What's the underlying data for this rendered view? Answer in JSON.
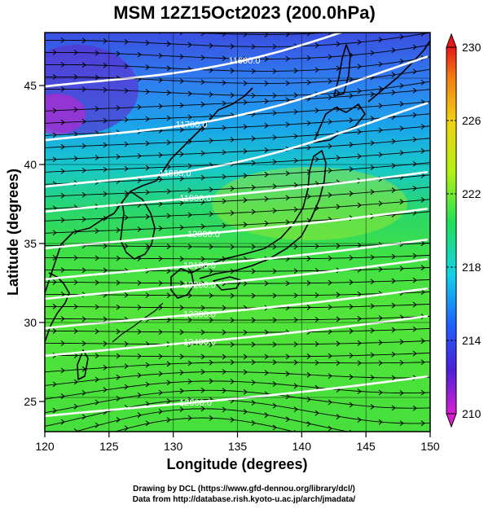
{
  "title": "MSM 12Z15Oct2023 (200.0hPa)",
  "xlabel": "Longitude (degrees)",
  "ylabel": "Latitude  (degrees)",
  "x_ticks": [
    "120",
    "125",
    "130",
    "135",
    "140",
    "145",
    "150"
  ],
  "y_ticks": [
    "25",
    "30",
    "35",
    "40",
    "45"
  ],
  "colorbar": {
    "min": 210,
    "max": 230,
    "ticks": [
      "230",
      "226",
      "222",
      "218",
      "214",
      "210"
    ],
    "palette": [
      "#d81fd0",
      "#4b1fd8",
      "#1f5fff",
      "#12d2e8",
      "#1ee05a",
      "#b4f012",
      "#f2d012",
      "#f27a12",
      "#e81818"
    ]
  },
  "contours": [
    {
      "label": "11600.0"
    },
    {
      "label": "11700.0"
    },
    {
      "label": "11800.0"
    },
    {
      "label": "11900.0"
    },
    {
      "label": "12000.0"
    },
    {
      "label": "12100.0"
    },
    {
      "label": "12200.0"
    },
    {
      "label": "12300.0"
    },
    {
      "label": "12400.0"
    },
    {
      "label": "12500.0"
    }
  ],
  "credits": {
    "line1": "Drawing by DCL (https://www.gfd-dennou.org/library/dcl/)",
    "line2": "Data from http://database.rish.kyoto-u.ac.jp/arch/jmadata/"
  }
}
